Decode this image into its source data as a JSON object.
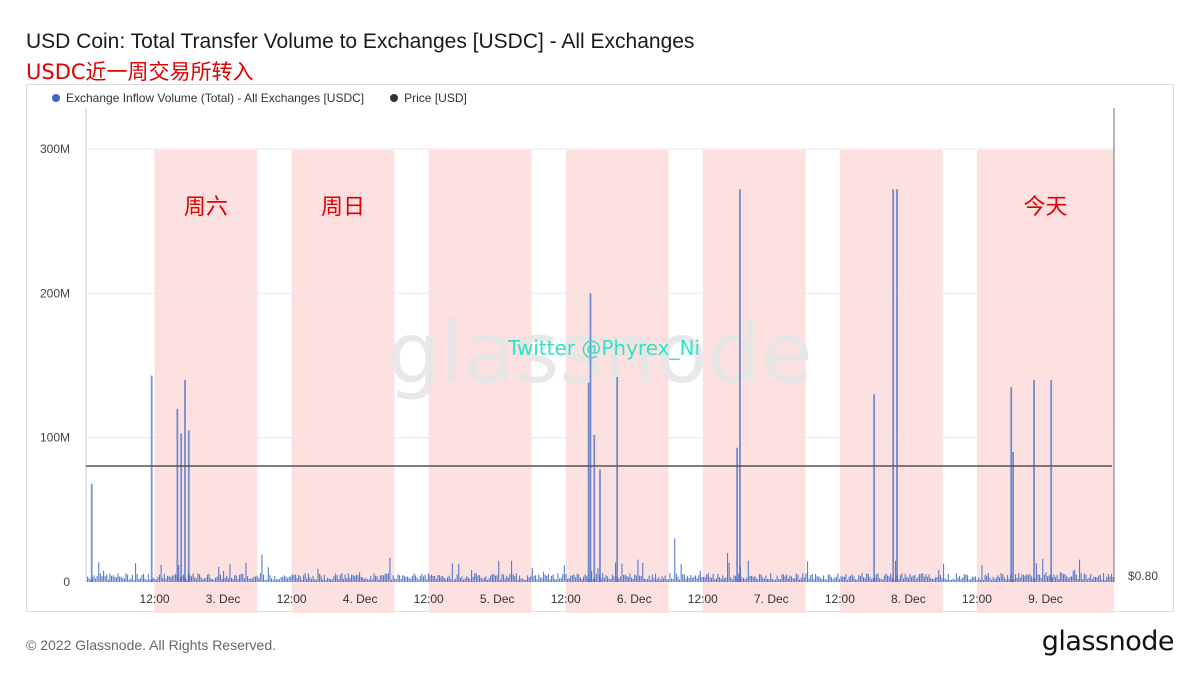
{
  "header": {
    "title": "USD Coin: Total Transfer Volume to Exchanges [USDC] - All Exchanges",
    "subtitle": "USDC近一周交易所转入"
  },
  "footer": {
    "copyright": "© 2022 Glassnode. All Rights Reserved.",
    "logo_text": "glassnode"
  },
  "colors": {
    "inflow": "#3a68c4",
    "price": "#555555",
    "weekend_shade": "#fde0e0",
    "annotation": "#e00000",
    "watermark_twitter": "#2fe3c8",
    "watermark_glassnode": "#e6e6e6"
  },
  "chart_data": {
    "type": "bar",
    "legend": [
      {
        "name": "Exchange Inflow Volume (Total) - All Exchanges [USDC]",
        "color": "#3a68c4",
        "marker": "dot"
      },
      {
        "name": "Price [USD]",
        "color": "#333333",
        "marker": "dot"
      }
    ],
    "y_axis": {
      "ticks": [
        "0",
        "100M",
        "200M",
        "300M"
      ],
      "tick_values": [
        0,
        100000000,
        200000000,
        300000000
      ],
      "ylim": [
        0,
        320000000
      ]
    },
    "y2_axis": {
      "label": "$0.80",
      "price_value": 0.8
    },
    "x_axis": {
      "range": [
        "2022-12-02 00:00",
        "2022-12-09 12:00"
      ],
      "ticks": [
        {
          "label": "12:00",
          "t": "2022-12-02 12:00"
        },
        {
          "label": "3. Dec",
          "t": "2022-12-03 00:00"
        },
        {
          "label": "12:00",
          "t": "2022-12-03 12:00"
        },
        {
          "label": "4. Dec",
          "t": "2022-12-04 00:00"
        },
        {
          "label": "12:00",
          "t": "2022-12-04 12:00"
        },
        {
          "label": "5. Dec",
          "t": "2022-12-05 00:00"
        },
        {
          "label": "12:00",
          "t": "2022-12-05 12:00"
        },
        {
          "label": "6. Dec",
          "t": "2022-12-06 00:00"
        },
        {
          "label": "12:00",
          "t": "2022-12-06 12:00"
        },
        {
          "label": "7. Dec",
          "t": "2022-12-07 00:00"
        },
        {
          "label": "12:00",
          "t": "2022-12-07 12:00"
        },
        {
          "label": "8. Dec",
          "t": "2022-12-08 00:00"
        },
        {
          "label": "12:00",
          "t": "2022-12-08 12:00"
        },
        {
          "label": "9. Dec",
          "t": "2022-12-09 00:00"
        }
      ]
    },
    "highlight_bands": [
      {
        "from": "2022-12-02 12:00",
        "to": "2022-12-03 06:00",
        "label": "周六"
      },
      {
        "from": "2022-12-03 12:00",
        "to": "2022-12-04 06:00",
        "label": "周日"
      },
      {
        "from": "2022-12-04 12:00",
        "to": "2022-12-05 06:00",
        "label": ""
      },
      {
        "from": "2022-12-05 12:00",
        "to": "2022-12-06 06:00",
        "label": ""
      },
      {
        "from": "2022-12-06 12:00",
        "to": "2022-12-07 06:00",
        "label": ""
      },
      {
        "from": "2022-12-07 12:00",
        "to": "2022-12-08 06:00",
        "label": ""
      },
      {
        "from": "2022-12-08 12:00",
        "to": "2022-12-09 12:00",
        "label": "今天"
      }
    ],
    "inflow_spikes": [
      {
        "t": "2022-12-02 01:00",
        "v": 68000000
      },
      {
        "t": "2022-12-02 11:30",
        "v": 143000000
      },
      {
        "t": "2022-12-02 16:00",
        "v": 120000000
      },
      {
        "t": "2022-12-02 16:40",
        "v": 103000000
      },
      {
        "t": "2022-12-02 17:20",
        "v": 140000000
      },
      {
        "t": "2022-12-02 18:00",
        "v": 105000000
      },
      {
        "t": "2022-12-05 16:20",
        "v": 200000000
      },
      {
        "t": "2022-12-05 16:00",
        "v": 138000000
      },
      {
        "t": "2022-12-05 17:00",
        "v": 102000000
      },
      {
        "t": "2022-12-05 18:00",
        "v": 78000000
      },
      {
        "t": "2022-12-05 21:00",
        "v": 142000000
      },
      {
        "t": "2022-12-06 18:00",
        "v": 93000000
      },
      {
        "t": "2022-12-06 18:30",
        "v": 272000000
      },
      {
        "t": "2022-12-07 18:00",
        "v": 130000000
      },
      {
        "t": "2022-12-07 21:20",
        "v": 272000000
      },
      {
        "t": "2022-12-07 22:00",
        "v": 272000000
      },
      {
        "t": "2022-12-08 18:00",
        "v": 135000000
      },
      {
        "t": "2022-12-08 18:20",
        "v": 90000000
      },
      {
        "t": "2022-12-08 22:00",
        "v": 140000000
      },
      {
        "t": "2022-12-09 01:00",
        "v": 140000000
      }
    ],
    "baseline_note": "",
    "price_level_usd": 0.8
  },
  "watermarks": {
    "twitter": "Twitter @Phyrex_Ni",
    "glassnode": "glassnode"
  }
}
